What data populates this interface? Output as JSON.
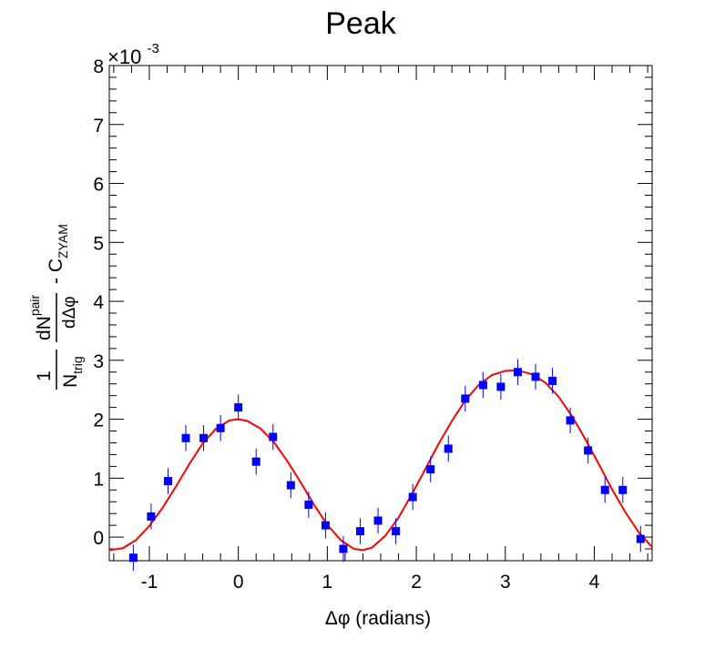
{
  "chart_data": {
    "type": "scatter",
    "title": "Peak",
    "xlabel": "Δφ (radians)",
    "ylabel": {
      "prefix": "1",
      "n_main": "N",
      "n_sub": "trig",
      "d_main": "dN",
      "d_sup": "pair",
      "denom": "dΔφ",
      "suffix": "- C",
      "suffix_sub": "ZYAM"
    },
    "y_exponent": {
      "base": "×10",
      "power": "-3"
    },
    "xlim": [
      -1.45,
      4.65
    ],
    "ylim": [
      -0.4,
      8.0
    ],
    "y_scale_factor": 0.001,
    "x_ticks": [
      -1,
      0,
      1,
      2,
      3,
      4
    ],
    "x_tick_labels": [
      "-1",
      "0",
      "1",
      "2",
      "3",
      "4"
    ],
    "y_ticks": [
      0,
      1,
      2,
      3,
      4,
      5,
      6,
      7,
      8
    ],
    "y_tick_labels": [
      "0",
      "1",
      "2",
      "3",
      "4",
      "5",
      "6",
      "7",
      "8"
    ],
    "grid": false,
    "series": [
      {
        "marker": "square",
        "color": "#0000ff",
        "x": [
          -1.18,
          -0.98,
          -0.79,
          -0.59,
          -0.39,
          -0.2,
          0.0,
          0.2,
          0.39,
          0.59,
          0.79,
          0.98,
          1.18,
          1.37,
          1.57,
          1.77,
          1.96,
          2.16,
          2.36,
          2.55,
          2.75,
          2.95,
          3.14,
          3.34,
          3.53,
          3.73,
          3.93,
          4.12,
          4.32,
          4.52
        ],
        "y": [
          -0.35,
          0.35,
          0.95,
          1.68,
          1.68,
          1.85,
          2.2,
          1.28,
          1.7,
          0.88,
          0.55,
          0.2,
          -0.2,
          0.1,
          0.28,
          0.1,
          0.68,
          1.15,
          1.5,
          2.35,
          2.58,
          2.55,
          2.8,
          2.72,
          2.65,
          1.98,
          1.47,
          0.8,
          0.8,
          -0.03
        ],
        "yerr": [
          0.22,
          0.22,
          0.22,
          0.22,
          0.22,
          0.22,
          0.22,
          0.22,
          0.22,
          0.22,
          0.22,
          0.22,
          0.22,
          0.22,
          0.22,
          0.22,
          0.22,
          0.22,
          0.22,
          0.22,
          0.22,
          0.22,
          0.22,
          0.22,
          0.22,
          0.22,
          0.22,
          0.22,
          0.22,
          0.22
        ]
      },
      {
        "type": "line",
        "color": "#ff0000",
        "x": [
          -1.45,
          -1.3,
          -1.15,
          -1.0,
          -0.85,
          -0.7,
          -0.55,
          -0.4,
          -0.25,
          -0.1,
          0.0,
          0.1,
          0.25,
          0.4,
          0.55,
          0.7,
          0.85,
          1.0,
          1.15,
          1.3,
          1.4,
          1.5,
          1.65,
          1.8,
          1.95,
          2.1,
          2.25,
          2.4,
          2.55,
          2.7,
          2.85,
          3.0,
          3.14,
          3.3,
          3.45,
          3.6,
          3.75,
          3.9,
          4.05,
          4.2,
          4.35,
          4.5,
          4.65
        ],
        "y": [
          -0.22,
          -0.19,
          -0.05,
          0.19,
          0.5,
          0.86,
          1.24,
          1.59,
          1.84,
          1.98,
          2.0,
          1.97,
          1.84,
          1.61,
          1.29,
          0.93,
          0.55,
          0.21,
          -0.05,
          -0.2,
          -0.22,
          -0.18,
          0.02,
          0.33,
          0.73,
          1.15,
          1.58,
          1.97,
          2.32,
          2.58,
          2.75,
          2.82,
          2.83,
          2.76,
          2.62,
          2.38,
          2.05,
          1.66,
          1.24,
          0.81,
          0.42,
          0.08,
          -0.17
        ]
      }
    ]
  }
}
